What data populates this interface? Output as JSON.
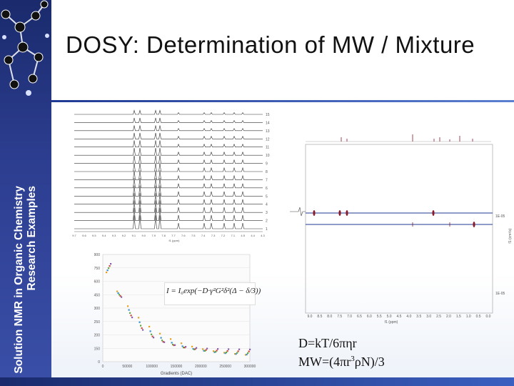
{
  "slide": {
    "title": "DOSY: Determination of MW / Mixture",
    "side_line1": "Solution NMR in Organic Chemistry",
    "side_line2": "Research Examples"
  },
  "formulas": {
    "diffusion": "D=kT/6πηr",
    "mw_prefix": "MW=(4πr",
    "mw_exp": "3",
    "mw_suffix": "ρN)/3"
  },
  "spectra_stack": {
    "row_labels": [
      "15",
      "14",
      "13",
      "12",
      "11",
      "10",
      "9",
      "8",
      "7",
      "6",
      "5",
      "4",
      "3",
      "2",
      "1"
    ],
    "x_ticks": [
      "9.7",
      "9.6",
      "9.5",
      "9.4",
      "9.3",
      "9.2",
      "9.1",
      "9.0",
      "7.9",
      "7.8",
      "7.7",
      "7.6",
      "7.5",
      "7.4",
      "7.3",
      "7.2",
      "7.1",
      "4.5",
      "4.4",
      "4.3"
    ],
    "x_label": "f1 (ppm)"
  },
  "dosy_map": {
    "x_ticks": [
      "9.0",
      "8.5",
      "8.0",
      "7.5",
      "7.0",
      "6.5",
      "6.0",
      "5.5",
      "5.0",
      "4.5",
      "4.0",
      "3.5",
      "3.0",
      "2.5",
      "2.0",
      "1.5",
      "1.0",
      "0.5",
      "0.0"
    ],
    "x_label": "f1 (ppm)",
    "y_label_top": "1E-05",
    "y_label_bottom": "1E-05",
    "y_axis_label": "f1 (cm²/s)"
  },
  "decay_plot": {
    "y_ticks": [
      "900",
      "750",
      "600",
      "450",
      "300",
      "250",
      "200",
      "150",
      "0"
    ],
    "x_ticks": [
      "0",
      "50000",
      "100000",
      "150000",
      "200000",
      "250000",
      "300000"
    ],
    "x_label": "Gradients (DAC)",
    "equation": "I = I₀exp(−D·γ²G²δ²(Δ − δ/3))"
  },
  "colors": {
    "band_dark": "#1a2a6c",
    "band_light": "#3a4fa8",
    "peak_red": "#8b1a2a",
    "trace_blue": "#1f3a93"
  }
}
